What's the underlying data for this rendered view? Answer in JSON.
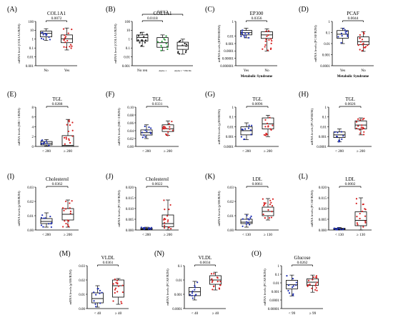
{
  "colors": {
    "blue": "#1f2fb0",
    "red": "#d62222",
    "green": "#2a9d3a",
    "black": "#222222"
  },
  "chart_data": [
    {
      "id": "A",
      "type": "boxplot",
      "letter": "(A)",
      "title": "COL1A1",
      "ylabel": "mRNA level (COL1A1/B2M)",
      "xlabel": "",
      "scale": "log",
      "ylim": [
        0.001,
        100
      ],
      "ticks": [
        "100",
        "10",
        "1",
        "0.1",
        "0.01",
        "0.001"
      ],
      "groups": [
        {
          "label": "No",
          "color": "blue",
          "min": 0.7,
          "q1": 1.8,
          "median": 4.5,
          "q3": 8,
          "max": 15
        },
        {
          "label": "Yes",
          "color": "red",
          "min": 0.06,
          "q1": 0.4,
          "median": 1.1,
          "q3": 3,
          "max": 18
        }
      ],
      "brackets": [
        {
          "from": 0,
          "to": 1,
          "label": "0.0072",
          "level": 0
        }
      ]
    },
    {
      "id": "B",
      "type": "boxplot",
      "letter": "(B)",
      "title": "COL1A1",
      "ylabel": "mRNA level (COL1A1/B2M)",
      "xlabel": "",
      "scale": "log",
      "ylim": [
        0.001,
        100
      ],
      "ticks": [
        "100",
        "10",
        "1",
        "0.1",
        "0.01",
        "0.001"
      ],
      "groups": [
        {
          "label": "No ren",
          "color": "black",
          "min": 0.15,
          "q1": 0.6,
          "median": 1.5,
          "q3": 3,
          "max": 6
        },
        {
          "label": "Alpha 1",
          "color": "green",
          "min": 0.05,
          "q1": 0.12,
          "median": 0.4,
          "q3": 1.5,
          "max": 3
        },
        {
          "label": "Alpha 1 + PIK3K",
          "color": "black",
          "min": 0.02,
          "q1": 0.07,
          "median": 0.18,
          "q3": 0.45,
          "max": 1
        }
      ],
      "brackets": [
        {
          "from": 0,
          "to": 1,
          "label": "0.0118",
          "level": 0
        },
        {
          "from": 0,
          "to": 2,
          "label": "0.0112",
          "level": 1
        }
      ]
    },
    {
      "id": "C",
      "type": "boxplot",
      "letter": "(C)",
      "title": "EP300",
      "ylabel": "mRNA levels (EP300/B2M)",
      "xlabel": "Metabolic Syndrome",
      "scale": "log",
      "ylim": [
        1e-06,
        1
      ],
      "ticks": [
        "1",
        "0.01",
        "0.001",
        "0.0001",
        "0.00001",
        "0.000001"
      ],
      "groups": [
        {
          "label": "Yes",
          "color": "blue",
          "min": 0.006,
          "q1": 0.015,
          "median": 0.03,
          "q3": 0.06,
          "max": 0.12
        },
        {
          "label": "No",
          "color": "red",
          "min": 0.0001,
          "q1": 0.005,
          "median": 0.015,
          "q3": 0.04,
          "max": 0.1
        }
      ],
      "brackets": [
        {
          "from": 0,
          "to": 1,
          "label": "0.0356",
          "level": 0
        }
      ]
    },
    {
      "id": "D",
      "type": "boxplot",
      "letter": "(D)",
      "title": "PCAF",
      "ylabel": "mRNA levels (PCAF/B2M)",
      "xlabel": "Metabolic Syndrome",
      "scale": "log",
      "ylim": [
        0.0001,
        1
      ],
      "ticks": [
        "1",
        "0.1",
        "0.01",
        "0.001",
        "0.0001"
      ],
      "groups": [
        {
          "label": "Yes",
          "color": "blue",
          "min": 0.01,
          "q1": 0.03,
          "median": 0.07,
          "q3": 0.15,
          "max": 0.25
        },
        {
          "label": "No",
          "color": "red",
          "min": 0.002,
          "q1": 0.008,
          "median": 0.015,
          "q3": 0.04,
          "max": 0.12
        }
      ],
      "brackets": [
        {
          "from": 0,
          "to": 1,
          "label": "0.0044",
          "level": 0
        }
      ]
    },
    {
      "id": "E",
      "type": "boxplot",
      "letter": "(E)",
      "title": "TGL",
      "ylabel": "mRNA levels (SRC-1/B2M)",
      "xlabel": "",
      "scale": "linear",
      "ylim": [
        0,
        8
      ],
      "ticks": [
        "8",
        "6",
        "4",
        "2",
        "0"
      ],
      "groups": [
        {
          "label": "< 200",
          "color": "blue",
          "min": 0.1,
          "q1": 0.3,
          "median": 0.6,
          "q3": 1,
          "max": 1.4
        },
        {
          "label": "≥ 200",
          "color": "red",
          "min": 0,
          "q1": 0,
          "median": 0.2,
          "q3": 2.2,
          "max": 5.5
        }
      ],
      "brackets": [
        {
          "from": 0,
          "to": 1,
          "label": "0.0288",
          "level": 0
        }
      ]
    },
    {
      "id": "F",
      "type": "boxplot",
      "letter": "(F)",
      "title": "TGL",
      "ylabel": "mRNA levels (SRC-2/B2M)",
      "xlabel": "",
      "scale": "linear",
      "ylim": [
        0,
        0.1
      ],
      "ticks": [
        "0.10",
        "0.08",
        "0.06",
        "0.04",
        "0.02",
        "0.00"
      ],
      "groups": [
        {
          "label": "< 200",
          "color": "blue",
          "min": 0.02,
          "q1": 0.029,
          "median": 0.035,
          "q3": 0.042,
          "max": 0.055
        },
        {
          "label": "≥ 200",
          "color": "red",
          "min": 0.028,
          "q1": 0.038,
          "median": 0.045,
          "q3": 0.055,
          "max": 0.065
        }
      ],
      "brackets": [
        {
          "from": 0,
          "to": 1,
          "label": "0.0331",
          "level": 0
        }
      ]
    },
    {
      "id": "G",
      "type": "boxplot",
      "letter": "(G)",
      "title": "TGL",
      "ylabel": "mRNA levels (p300/B2M)",
      "xlabel": "",
      "scale": "log",
      "ylim": [
        0.0001,
        1
      ],
      "ticks": [
        "1",
        "0.1",
        "0.01",
        "0.001",
        "0.0001"
      ],
      "groups": [
        {
          "label": "< 200",
          "color": "blue",
          "min": 0.0005,
          "q1": 0.0015,
          "median": 0.004,
          "q3": 0.01,
          "max": 0.025
        },
        {
          "label": "≥ 200",
          "color": "red",
          "min": 0.001,
          "q1": 0.006,
          "median": 0.02,
          "q3": 0.08,
          "max": 0.15
        }
      ],
      "brackets": [
        {
          "from": 0,
          "to": 1,
          "label": "0.0096",
          "level": 0
        }
      ]
    },
    {
      "id": "H",
      "type": "boxplot",
      "letter": "(H)",
      "title": "TGL",
      "ylabel": "mRNA levels (PCAF/B2M)",
      "xlabel": "",
      "scale": "log",
      "ylim": [
        0.0001,
        1
      ],
      "ticks": [
        "1",
        "0.1",
        "0.01",
        "0.001",
        "0.0001"
      ],
      "groups": [
        {
          "label": "< 200",
          "color": "blue",
          "min": 0.0003,
          "q1": 0.0008,
          "median": 0.0015,
          "q3": 0.003,
          "max": 0.006
        },
        {
          "label": "≥ 200",
          "color": "red",
          "min": 0.0015,
          "q1": 0.006,
          "median": 0.015,
          "q3": 0.04,
          "max": 0.08
        }
      ],
      "brackets": [
        {
          "from": 0,
          "to": 1,
          "label": "0.0026",
          "level": 0
        }
      ]
    },
    {
      "id": "I",
      "type": "boxplot",
      "letter": "(I)",
      "title": "Cholesterol",
      "ylabel": "mRNA levels (p300/B2M)",
      "xlabel": "",
      "scale": "linear",
      "ylim": [
        0,
        0.03
      ],
      "ticks": [
        "0.03",
        "0.02",
        "0.01",
        "0.00"
      ],
      "groups": [
        {
          "label": "< 200",
          "color": "blue",
          "min": 0.002,
          "q1": 0.0045,
          "median": 0.006,
          "q3": 0.008,
          "max": 0.012
        },
        {
          "label": "≥ 200",
          "color": "red",
          "min": 0.002,
          "q1": 0.007,
          "median": 0.011,
          "q3": 0.015,
          "max": 0.021
        }
      ],
      "brackets": [
        {
          "from": 0,
          "to": 1,
          "label": "0.0362",
          "level": 0
        }
      ]
    },
    {
      "id": "J",
      "type": "boxplot",
      "letter": "(J)",
      "title": "Cholesterol",
      "ylabel": "mRNA levels (PCAF/B2M)",
      "xlabel": "",
      "scale": "linear",
      "ylim": [
        0,
        0.02
      ],
      "ticks": [
        "0.020",
        "0.015",
        "0.010",
        "0.005",
        "0.000"
      ],
      "groups": [
        {
          "label": "< 200",
          "color": "blue",
          "min": 0,
          "q1": 0.0002,
          "median": 0.0005,
          "q3": 0.0009,
          "max": 0.0013
        },
        {
          "label": "≥ 200",
          "color": "red",
          "min": 0,
          "q1": 0.0015,
          "median": 0.003,
          "q3": 0.007,
          "max": 0.014
        }
      ],
      "brackets": [
        {
          "from": 0,
          "to": 1,
          "label": "0.0022",
          "level": 0
        }
      ]
    },
    {
      "id": "K",
      "type": "boxplot",
      "letter": "(K)",
      "title": "LDL",
      "ylabel": "mRNA levels (p300/B2M)",
      "xlabel": "",
      "scale": "linear",
      "ylim": [
        0,
        0.03
      ],
      "ticks": [
        "0.03",
        "0.02",
        "0.01",
        "0.00"
      ],
      "groups": [
        {
          "label": "< 130",
          "color": "blue",
          "min": 0.002,
          "q1": 0.0045,
          "median": 0.0055,
          "q3": 0.0075,
          "max": 0.011
        },
        {
          "label": "≥ 130",
          "color": "red",
          "min": 0.007,
          "q1": 0.01,
          "median": 0.013,
          "q3": 0.016,
          "max": 0.022
        }
      ],
      "brackets": [
        {
          "from": 0,
          "to": 1,
          "label": "0.0061",
          "level": 0
        }
      ]
    },
    {
      "id": "L",
      "type": "boxplot",
      "letter": "(L)",
      "title": "LDL",
      "ylabel": "mRNA levels (PCAF/B2M)",
      "xlabel": "",
      "scale": "linear",
      "ylim": [
        0,
        0.02
      ],
      "ticks": [
        "0.020",
        "0.015",
        "0.010",
        "0.005",
        "0.000"
      ],
      "groups": [
        {
          "label": "< 130",
          "color": "blue",
          "min": 0,
          "q1": 0.0002,
          "median": 0.0005,
          "q3": 0.0008,
          "max": 0.0012
        },
        {
          "label": "≥ 130",
          "color": "red",
          "min": 0,
          "q1": 0.002,
          "median": 0.0045,
          "q3": 0.0085,
          "max": 0.015
        }
      ],
      "brackets": [
        {
          "from": 0,
          "to": 1,
          "label": "0.0002",
          "level": 0
        }
      ]
    },
    {
      "id": "M",
      "type": "boxplot",
      "letter": "(M)",
      "title": "VLDL",
      "ylabel": "mRNA levels (p300/B2M)",
      "xlabel": "",
      "scale": "linear",
      "ylim": [
        0,
        0.03
      ],
      "ticks": [
        "0.03",
        "0.02",
        "0.01",
        "0.00"
      ],
      "groups": [
        {
          "label": "< 40",
          "color": "blue",
          "min": 0.001,
          "q1": 0.004,
          "median": 0.007,
          "q3": 0.011,
          "max": 0.016
        },
        {
          "label": "≥ 40",
          "color": "red",
          "min": 0.003,
          "q1": 0.008,
          "median": 0.016,
          "q3": 0.02,
          "max": 0.021
        }
      ],
      "brackets": [
        {
          "from": 0,
          "to": 1,
          "label": "0.0361",
          "level": 0
        }
      ]
    },
    {
      "id": "N",
      "type": "boxplot",
      "letter": "(N)",
      "title": "VLDL",
      "ylabel": "mRNA levels (PCAF/B2M)",
      "xlabel": "",
      "scale": "log",
      "ylim": [
        0.0001,
        0.1
      ],
      "ticks": [
        "0.1",
        "0.01",
        "0.001",
        "0.0001"
      ],
      "groups": [
        {
          "label": "< 40",
          "color": "blue",
          "min": 0.0004,
          "q1": 0.0008,
          "median": 0.0015,
          "q3": 0.003,
          "max": 0.008
        },
        {
          "label": "≥ 40",
          "color": "red",
          "min": 0.002,
          "q1": 0.005,
          "median": 0.01,
          "q3": 0.02,
          "max": 0.035
        }
      ],
      "brackets": [
        {
          "from": 0,
          "to": 1,
          "label": "0.0034",
          "level": 0
        }
      ]
    },
    {
      "id": "O",
      "type": "boxplot",
      "letter": "(O)",
      "title": "Glucose",
      "ylabel": "mRNA levels (PCAF/B2M)",
      "xlabel": "",
      "scale": "log",
      "ylim": [
        1e-05,
        1
      ],
      "ticks": [
        "1",
        "0.1",
        "0.01",
        "0.001",
        "0.0001",
        "0.00001"
      ],
      "groups": [
        {
          "label": "< 99",
          "color": "blue",
          "min": 0.0003,
          "q1": 0.002,
          "median": 0.006,
          "q3": 0.02,
          "max": 0.08
        },
        {
          "label": "≥ 99",
          "color": "red",
          "min": 0.0008,
          "q1": 0.005,
          "median": 0.012,
          "q3": 0.03,
          "max": 0.08
        }
      ],
      "brackets": [
        {
          "from": 0,
          "to": 1,
          "label": "0.0262",
          "level": 0
        }
      ]
    }
  ]
}
